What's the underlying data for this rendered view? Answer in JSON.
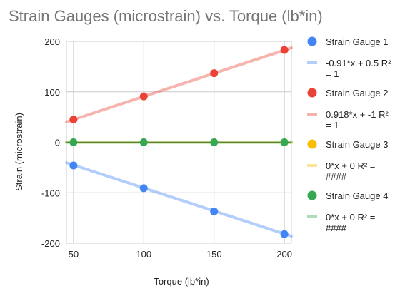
{
  "chart_data": {
    "type": "scatter",
    "title": "Strain Gauges (microstrain) vs. Torque (lb*in)",
    "xlabel": "Torque (lb*in)",
    "ylabel": "Strain (microstrain)",
    "xlim": [
      45,
      205
    ],
    "ylim": [
      -200,
      200
    ],
    "x_ticks": [
      50,
      100,
      150,
      200
    ],
    "y_ticks": [
      -200,
      -100,
      0,
      100,
      200
    ],
    "grid": true,
    "legend_position": "right",
    "series": [
      {
        "name": "Strain Gauge 1",
        "color": "#4285f4",
        "x": [
          50,
          100,
          150,
          200
        ],
        "y": [
          -46,
          -91,
          -137,
          -182
        ],
        "trendline": {
          "slope": -0.91,
          "intercept": 0.5,
          "label": [
            "-0.91*x + 0.5 R²",
            "= 1"
          ]
        }
      },
      {
        "name": "Strain Gauge 2",
        "color": "#ea4335",
        "x": [
          50,
          100,
          150,
          200
        ],
        "y": [
          45,
          91,
          137,
          183
        ],
        "trendline": {
          "slope": 0.918,
          "intercept": -1,
          "label": [
            "0.918*x + -1 R²",
            "= 1"
          ]
        }
      },
      {
        "name": "Strain Gauge 3",
        "color": "#fbbc04",
        "x": [
          50,
          100,
          150,
          200
        ],
        "y": [
          0,
          0,
          0,
          0
        ],
        "trendline": {
          "slope": 0,
          "intercept": 0,
          "label": [
            "0*x + 0 R² =",
            "####"
          ]
        }
      },
      {
        "name": "Strain Gauge 4",
        "color": "#34a853",
        "x": [
          50,
          100,
          150,
          200
        ],
        "y": [
          0,
          0,
          0,
          0
        ],
        "trendline": {
          "slope": 0,
          "intercept": 0,
          "label": [
            "0*x + 0 R² =",
            "####"
          ]
        }
      }
    ]
  }
}
